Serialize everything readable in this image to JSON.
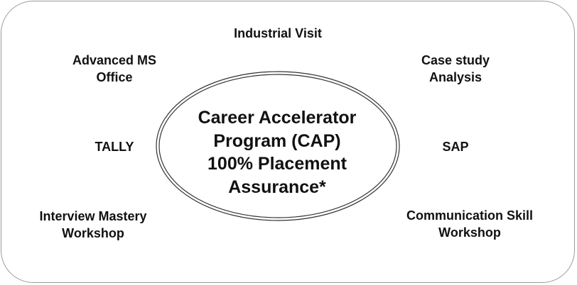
{
  "center": {
    "lines": [
      "Career Accelerator",
      "Program (CAP)",
      "100% Placement",
      "Assurance*"
    ]
  },
  "items": {
    "industrial_visit": [
      "Industrial Visit"
    ],
    "advanced_ms_office": [
      "Advanced MS",
      "Office"
    ],
    "case_study": [
      "Case study",
      "Analysis"
    ],
    "tally": [
      "TALLY"
    ],
    "sap": [
      "SAP"
    ],
    "interview_workshop": [
      "Interview Mastery",
      "Workshop"
    ],
    "communication_workshop": [
      "Communication Skill",
      "Workshop"
    ]
  }
}
